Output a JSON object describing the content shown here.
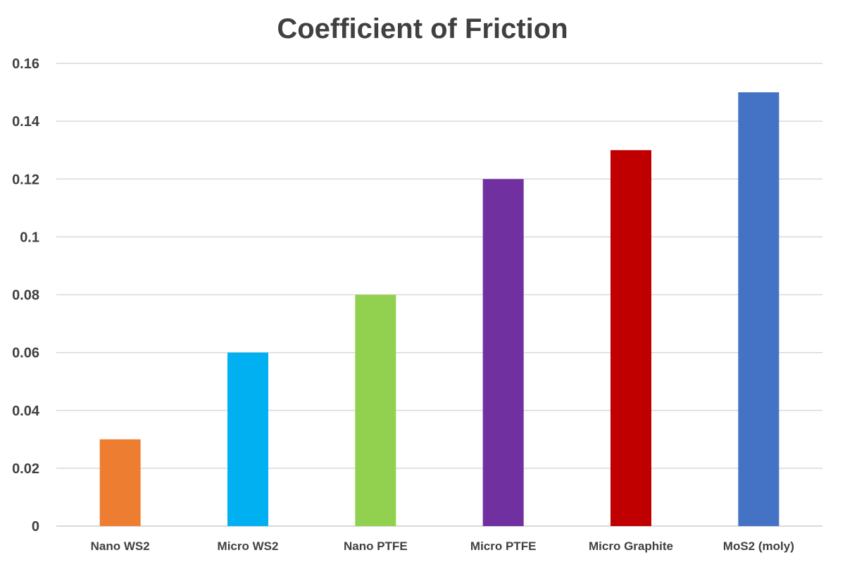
{
  "chart_data": {
    "type": "bar",
    "title": "Coefficient of Friction",
    "xlabel": "",
    "ylabel": "",
    "categories": [
      "Nano WS2",
      "Micro WS2",
      "Nano PTFE",
      "Micro PTFE",
      "Micro Graphite",
      "MoS2 (moly)"
    ],
    "values": [
      0.03,
      0.06,
      0.08,
      0.12,
      0.13,
      0.15
    ],
    "colors": [
      "#ED7D31",
      "#00B0F0",
      "#92D050",
      "#7030A0",
      "#C00000",
      "#4472C4"
    ],
    "ylim": [
      0,
      0.16
    ],
    "yticks": [
      0,
      0.02,
      0.04,
      0.06,
      0.08,
      0.1,
      0.12,
      0.14,
      0.16
    ],
    "ytick_labels": [
      "0",
      "0.02",
      "0.04",
      "0.06",
      "0.08",
      "0.1",
      "0.12",
      "0.14",
      "0.16"
    ],
    "grid": true,
    "legend": false,
    "gridline_color": "#D9D9D9",
    "text_color": "#404040"
  }
}
